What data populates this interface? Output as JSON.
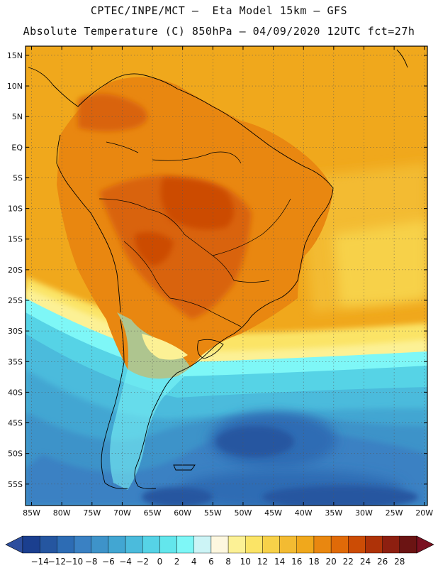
{
  "header": {
    "line1": "CPTEC/INPE/MCT –  Eta Model 15km – GFS",
    "line2": "Absolute Temperature (C) 850hPa – 04/09/2020 12UTC fct=27h"
  },
  "map": {
    "variable": "Absolute Temperature",
    "units": "C",
    "level": "850hPa",
    "lat_labels": [
      "15N",
      "10N",
      "5N",
      "EQ",
      "5S",
      "10S",
      "15S",
      "20S",
      "25S",
      "30S",
      "35S",
      "40S",
      "45S",
      "50S",
      "55S"
    ],
    "lon_labels": [
      "85W",
      "80W",
      "75W",
      "70W",
      "65W",
      "60W",
      "55W",
      "50W",
      "45W",
      "40W",
      "35W",
      "30W",
      "25W",
      "20W"
    ]
  },
  "colorbar": {
    "labels": [
      "-14",
      "-12",
      "-10",
      "-8",
      "-6",
      "-4",
      "-2",
      "0",
      "2",
      "4",
      "6",
      "8",
      "10",
      "12",
      "14",
      "16",
      "18",
      "20",
      "22",
      "24",
      "26",
      "28"
    ],
    "colors": [
      "#1b3f8f",
      "#2556a0",
      "#2d6cb4",
      "#3a81c3",
      "#3e93c9",
      "#42a6d2",
      "#4bbbdc",
      "#56d3e6",
      "#63e6ec",
      "#7ef7f7",
      "#ccf4f6",
      "#fdf7df",
      "#fcf195",
      "#fbe466",
      "#f7d149",
      "#f3bb32",
      "#f0a81c",
      "#e98710",
      "#e06a08",
      "#cc4c05",
      "#ae3208",
      "#8d1f10",
      "#6b1413"
    ],
    "low_color": "#2d4e9e",
    "high_color": "#7a1020"
  },
  "palette": {
    "ocean_warm": "#f0a81c",
    "land": "#e98710",
    "land_hot": "#d9630a",
    "cold": "#2d6cb4"
  }
}
